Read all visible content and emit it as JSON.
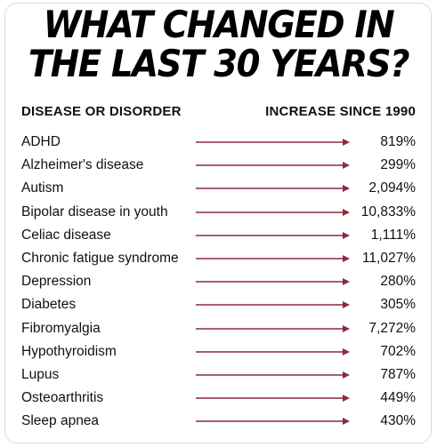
{
  "title": {
    "line1": "WHAT CHANGED IN",
    "line2": "THE LAST 30 YEARS?"
  },
  "table": {
    "header_left": "DISEASE OR DISORDER",
    "header_right": "INCREASE SINCE 1990",
    "rows": [
      {
        "name": "ADHD",
        "increase": "819%"
      },
      {
        "name": "Alzheimer's disease",
        "increase": "299%"
      },
      {
        "name": "Autism",
        "increase": "2,094%"
      },
      {
        "name": "Bipolar disease in youth",
        "increase": "10,833%"
      },
      {
        "name": "Celiac disease",
        "increase": "1,111%"
      },
      {
        "name": "Chronic fatigue syndrome",
        "increase": "11,027%"
      },
      {
        "name": "Depression",
        "increase": "280%"
      },
      {
        "name": "Diabetes",
        "increase": "305%"
      },
      {
        "name": "Fibromyalgia",
        "increase": "7,272%"
      },
      {
        "name": "Hypothyroidism",
        "increase": "702%"
      },
      {
        "name": "Lupus",
        "increase": "787%"
      },
      {
        "name": "Osteoarthritis",
        "increase": "449%"
      },
      {
        "name": "Sleep apnea",
        "increase": "430%"
      }
    ]
  },
  "colors": {
    "arrow": "#8e2a3a",
    "text": "#111111",
    "border": "#d9d9d9"
  },
  "icons": {
    "row_arrow": "right-arrow-icon"
  }
}
